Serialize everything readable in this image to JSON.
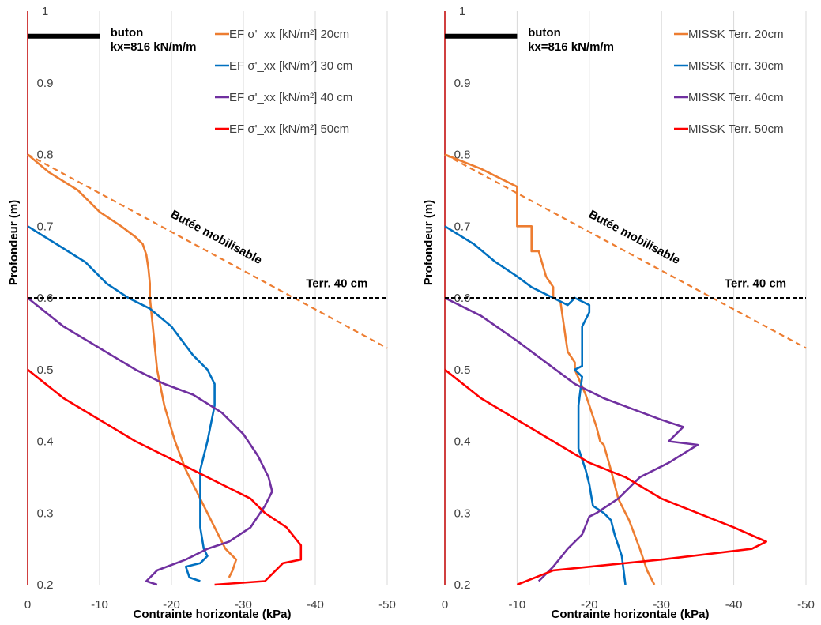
{
  "chart_data": [
    {
      "type": "line",
      "xlabel": "Contrainte horizontale (kPa)",
      "ylabel": "Profondeur (m)",
      "xlim": [
        0,
        -50
      ],
      "ylim": [
        0.2,
        1
      ],
      "x_ticks": [
        "0",
        "-10",
        "-20",
        "-30",
        "-40",
        "-50"
      ],
      "y_ticks": [
        "0.2",
        "0.3",
        "0.4",
        "0.5",
        "0.6",
        "0.7",
        "0.8",
        "0.9",
        "1"
      ],
      "vertical_grid": true,
      "horizontal_grid": false,
      "legend_position": "top-right",
      "series": [
        {
          "name": "EF σ'_xx [kN/m²] 20cm",
          "color": "#ED7D31",
          "points": [
            [
              0,
              0.8
            ],
            [
              -3,
              0.775
            ],
            [
              -7,
              0.75
            ],
            [
              -10,
              0.72
            ],
            [
              -13,
              0.7
            ],
            [
              -15,
              0.685
            ],
            [
              -16,
              0.675
            ],
            [
              -16.5,
              0.66
            ],
            [
              -16.8,
              0.64
            ],
            [
              -17,
              0.62
            ],
            [
              -17,
              0.6
            ],
            [
              -17.5,
              0.55
            ],
            [
              -18,
              0.5
            ],
            [
              -19,
              0.45
            ],
            [
              -20.5,
              0.4
            ],
            [
              -22,
              0.36
            ],
            [
              -24,
              0.32
            ],
            [
              -26,
              0.28
            ],
            [
              -27.5,
              0.25
            ],
            [
              -29,
              0.235
            ],
            [
              -28.5,
              0.22
            ],
            [
              -28,
              0.21
            ]
          ]
        },
        {
          "name": "EF σ'_xx [kN/m²] 30 cm",
          "color": "#0070C0",
          "points": [
            [
              0,
              0.7
            ],
            [
              -4,
              0.675
            ],
            [
              -8,
              0.65
            ],
            [
              -11,
              0.62
            ],
            [
              -14,
              0.6
            ],
            [
              -17,
              0.585
            ],
            [
              -20,
              0.56
            ],
            [
              -23,
              0.52
            ],
            [
              -25,
              0.5
            ],
            [
              -26,
              0.48
            ],
            [
              -26,
              0.45
            ],
            [
              -25,
              0.4
            ],
            [
              -24,
              0.36
            ],
            [
              -24,
              0.32
            ],
            [
              -24,
              0.28
            ],
            [
              -24.5,
              0.25
            ],
            [
              -25,
              0.24
            ],
            [
              -24,
              0.23
            ],
            [
              -22,
              0.225
            ],
            [
              -22.5,
              0.21
            ],
            [
              -24,
              0.205
            ]
          ]
        },
        {
          "name": "EF σ'_xx [kN/m²] 40 cm",
          "color": "#7030A0",
          "points": [
            [
              0,
              0.6
            ],
            [
              -5,
              0.56
            ],
            [
              -10,
              0.53
            ],
            [
              -15,
              0.5
            ],
            [
              -19,
              0.48
            ],
            [
              -23,
              0.465
            ],
            [
              -27,
              0.44
            ],
            [
              -30,
              0.41
            ],
            [
              -32,
              0.38
            ],
            [
              -33.5,
              0.35
            ],
            [
              -34,
              0.33
            ],
            [
              -33,
              0.31
            ],
            [
              -31,
              0.28
            ],
            [
              -28,
              0.26
            ],
            [
              -25,
              0.25
            ],
            [
              -22,
              0.235
            ],
            [
              -18,
              0.22
            ],
            [
              -16.5,
              0.205
            ],
            [
              -18,
              0.2
            ]
          ]
        },
        {
          "name": "EF σ'_xx [kN/m²] 50cm",
          "color": "#FF0000",
          "points": [
            [
              0,
              0.5
            ],
            [
              -5,
              0.46
            ],
            [
              -10,
              0.43
            ],
            [
              -15,
              0.4
            ],
            [
              -19,
              0.38
            ],
            [
              -23,
              0.36
            ],
            [
              -27,
              0.34
            ],
            [
              -31,
              0.32
            ],
            [
              -33,
              0.3
            ],
            [
              -36,
              0.28
            ],
            [
              -38,
              0.255
            ],
            [
              -38,
              0.235
            ],
            [
              -35.5,
              0.23
            ],
            [
              -33,
              0.205
            ],
            [
              -26,
              0.2
            ]
          ]
        },
        {
          "name": "",
          "color": "#ED7D31",
          "dashed": true,
          "points": [
            [
              0,
              0.8
            ],
            [
              -50,
              0.53
            ]
          ]
        }
      ],
      "annotations": [
        {
          "text": "buton",
          "at": [
            -11.5,
            0.965
          ]
        },
        {
          "text": "kx=816 kN/m/m",
          "at": [
            -11.5,
            0.945
          ]
        },
        {
          "text": "Butée mobilisable",
          "at": [
            -26,
            0.68
          ]
        },
        {
          "text": "Terr. 40 cm",
          "at": [
            -43,
            0.615
          ]
        }
      ],
      "strut_line": {
        "x": [
          0,
          -10
        ],
        "y": 0.965
      },
      "terrain_line_y": 0.6
    },
    {
      "type": "line",
      "xlabel": "Contrainte horizontale (kPa)",
      "ylabel": "Profondeur (m)",
      "xlim": [
        0,
        -50
      ],
      "ylim": [
        0.2,
        1
      ],
      "x_ticks": [
        "0",
        "-10",
        "-20",
        "-30",
        "-40",
        "-50"
      ],
      "y_ticks": [
        "0.2",
        "0.3",
        "0.4",
        "0.5",
        "0.6",
        "0.7",
        "0.8",
        "0.9",
        "1"
      ],
      "vertical_grid": true,
      "horizontal_grid": false,
      "legend_position": "top-right",
      "series": [
        {
          "name": "MISSK Terr. 20cm",
          "color": "#ED7D31",
          "points": [
            [
              0,
              0.8
            ],
            [
              -5,
              0.78
            ],
            [
              -10,
              0.755
            ],
            [
              -10,
              0.75
            ],
            [
              -10,
              0.7
            ],
            [
              -12,
              0.7
            ],
            [
              -12,
              0.665
            ],
            [
              -13,
              0.665
            ],
            [
              -14,
              0.63
            ],
            [
              -15,
              0.615
            ],
            [
              -15,
              0.6
            ],
            [
              -16,
              0.595
            ],
            [
              -16.5,
              0.56
            ],
            [
              -17,
              0.525
            ],
            [
              -18,
              0.51
            ],
            [
              -18,
              0.5
            ],
            [
              -19.5,
              0.465
            ],
            [
              -20,
              0.45
            ],
            [
              -21,
              0.42
            ],
            [
              -21.5,
              0.4
            ],
            [
              -22,
              0.395
            ],
            [
              -23,
              0.36
            ],
            [
              -24,
              0.32
            ],
            [
              -25,
              0.3
            ],
            [
              -25.5,
              0.29
            ],
            [
              -27,
              0.25
            ],
            [
              -28,
              0.22
            ],
            [
              -29,
              0.2
            ]
          ]
        },
        {
          "name": "MISSK Terr. 30cm",
          "color": "#0070C0",
          "points": [
            [
              0,
              0.7
            ],
            [
              -4,
              0.675
            ],
            [
              -7,
              0.65
            ],
            [
              -10,
              0.63
            ],
            [
              -12,
              0.615
            ],
            [
              -15,
              0.6
            ],
            [
              -17,
              0.59
            ],
            [
              -18,
              0.6
            ],
            [
              -20,
              0.59
            ],
            [
              -20,
              0.58
            ],
            [
              -19,
              0.56
            ],
            [
              -19,
              0.54
            ],
            [
              -19,
              0.52
            ],
            [
              -19,
              0.505
            ],
            [
              -18,
              0.5
            ],
            [
              -19,
              0.49
            ],
            [
              -18.5,
              0.45
            ],
            [
              -18.5,
              0.42
            ],
            [
              -18.5,
              0.39
            ],
            [
              -19.5,
              0.36
            ],
            [
              -20,
              0.34
            ],
            [
              -20.5,
              0.31
            ],
            [
              -22,
              0.3
            ],
            [
              -23,
              0.29
            ],
            [
              -23.5,
              0.27
            ],
            [
              -24.5,
              0.24
            ],
            [
              -25,
              0.2
            ]
          ]
        },
        {
          "name": "MISSK Terr. 40cm",
          "color": "#7030A0",
          "points": [
            [
              0,
              0.6
            ],
            [
              -5,
              0.575
            ],
            [
              -10,
              0.54
            ],
            [
              -14,
              0.51
            ],
            [
              -18,
              0.48
            ],
            [
              -22,
              0.46
            ],
            [
              -26,
              0.445
            ],
            [
              -30,
              0.43
            ],
            [
              -33,
              0.42
            ],
            [
              -31,
              0.4
            ],
            [
              -35,
              0.395
            ],
            [
              -31,
              0.37
            ],
            [
              -27,
              0.35
            ],
            [
              -24,
              0.32
            ],
            [
              -21,
              0.3
            ],
            [
              -20,
              0.295
            ],
            [
              -19,
              0.27
            ],
            [
              -17,
              0.25
            ],
            [
              -15,
              0.225
            ],
            [
              -13,
              0.205
            ]
          ]
        },
        {
          "name": "MISSK Terr. 50cm",
          "color": "#FF0000",
          "points": [
            [
              0,
              0.5
            ],
            [
              -5,
              0.46
            ],
            [
              -10,
              0.43
            ],
            [
              -15,
              0.4
            ],
            [
              -20,
              0.37
            ],
            [
              -25,
              0.35
            ],
            [
              -30,
              0.32
            ],
            [
              -35,
              0.3
            ],
            [
              -40,
              0.28
            ],
            [
              -44.5,
              0.26
            ],
            [
              -42.5,
              0.25
            ],
            [
              -30,
              0.235
            ],
            [
              -20,
              0.225
            ],
            [
              -15,
              0.22
            ],
            [
              -10,
              0.2
            ]
          ]
        },
        {
          "name": "",
          "color": "#ED7D31",
          "dashed": true,
          "points": [
            [
              0,
              0.8
            ],
            [
              -50,
              0.53
            ]
          ]
        }
      ],
      "annotations": [
        {
          "text": "buton",
          "at": [
            -11.5,
            0.965
          ]
        },
        {
          "text": "kx=816 kN/m/m",
          "at": [
            -11.5,
            0.945
          ]
        },
        {
          "text": "Butée mobilisable",
          "at": [
            -26,
            0.68
          ]
        },
        {
          "text": "Terr. 40 cm",
          "at": [
            -43,
            0.615
          ]
        }
      ],
      "strut_line": {
        "x": [
          0,
          -10
        ],
        "y": 0.965
      },
      "terrain_line_y": 0.6
    }
  ]
}
